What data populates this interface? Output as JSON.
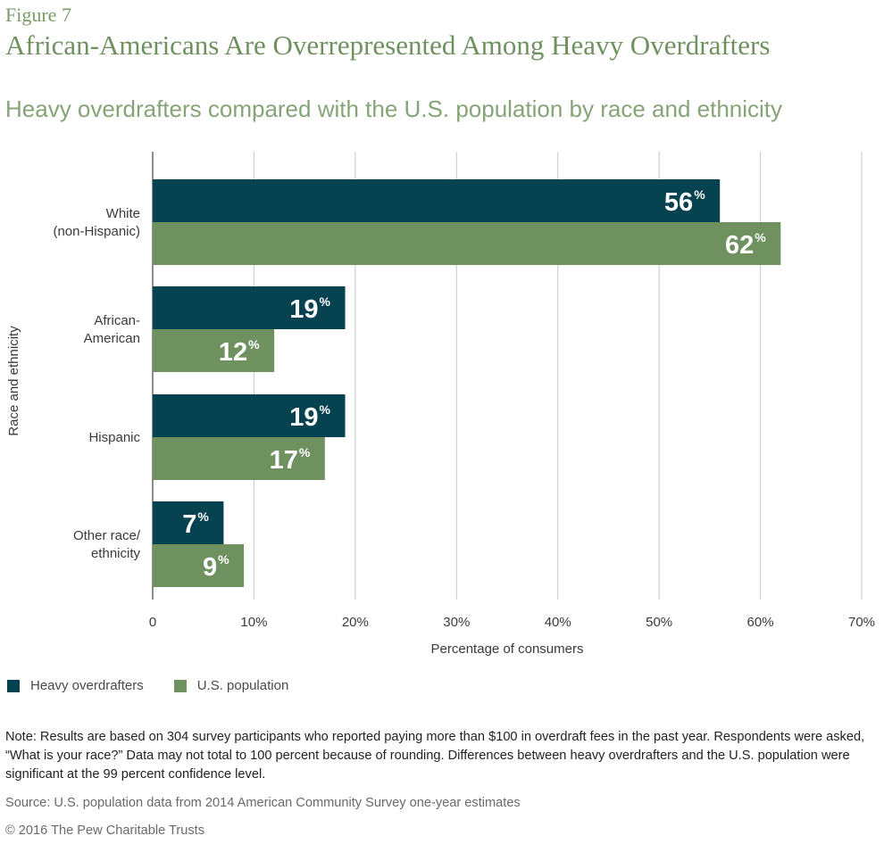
{
  "header": {
    "figure_label": "Figure 7",
    "title": "African-Americans Are Overrepresented Among Heavy Overdrafters",
    "subtitle": "Heavy overdrafters compared with the U.S. population by race and ethnicity"
  },
  "colors": {
    "heavy": "#06424f",
    "population": "#6f9160",
    "grid": "#c8c8c8",
    "axis": "#444444"
  },
  "chart_data": {
    "type": "bar",
    "orientation": "horizontal",
    "categories": [
      [
        "White",
        "(non-Hispanic)"
      ],
      [
        "African-",
        "American"
      ],
      [
        "Hispanic"
      ],
      [
        "Other race/",
        "ethnicity"
      ]
    ],
    "series": [
      {
        "name": "Heavy overdrafters",
        "values": [
          56,
          19,
          19,
          7
        ],
        "labels": [
          "56",
          "19",
          "19",
          "7"
        ]
      },
      {
        "name": "U.S. population",
        "values": [
          62,
          12,
          17,
          9
        ],
        "labels": [
          "62",
          "12",
          "17",
          "9"
        ]
      }
    ],
    "value_suffix": "%",
    "xlim": [
      0,
      70
    ],
    "xticks": [
      0,
      10,
      20,
      30,
      40,
      50,
      60,
      70
    ],
    "xtick_labels": [
      "0",
      "10%",
      "20%",
      "30%",
      "40%",
      "50%",
      "60%",
      "70%"
    ],
    "xlabel": "Percentage of consumers",
    "ylabel": "Race and ethnicity",
    "grid": true,
    "legend": [
      "Heavy overdrafters",
      "U.S. population"
    ]
  },
  "footer": {
    "note": "Note: Results are based on 304 survey participants who reported paying more than $100 in overdraft fees in the past year. Respondents were asked, “What is your race?” Data may not total to 100 percent because of rounding. Differences between heavy overdrafters and the U.S. population were significant at the 99 percent confidence level.",
    "source": "Source: U.S. population data from 2014 American Community Survey one-year estimates",
    "copyright": "© 2016 The Pew Charitable Trusts"
  }
}
